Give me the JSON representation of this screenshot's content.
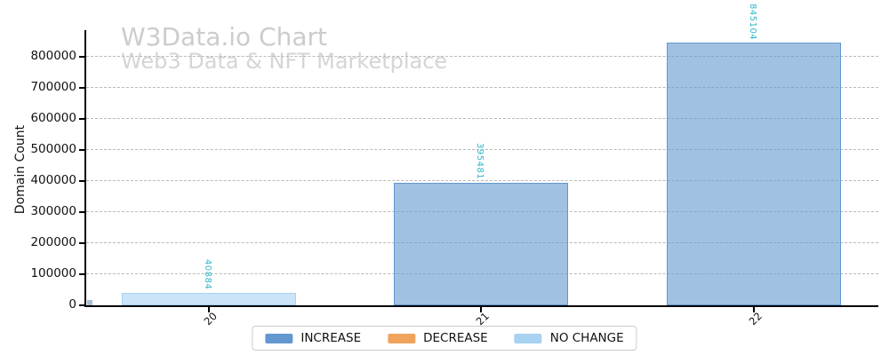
{
  "chart_data": {
    "type": "bar",
    "title": "W3Data.io Chart",
    "subtitle": "Web3 Data & NFT Marketplace",
    "ylabel": "Domain Count",
    "xlabel": "",
    "categories": [
      "20",
      "21",
      "22"
    ],
    "bars": [
      {
        "category": "20",
        "value": 40884,
        "label": "40884",
        "series": "NO CHANGE"
      },
      {
        "category": "21",
        "value": 395481,
        "label": "395481",
        "series": "INCREASE"
      },
      {
        "category": "22",
        "value": 845104,
        "label": "845104",
        "series": "INCREASE"
      }
    ],
    "series": [
      {
        "name": "INCREASE",
        "color": "#6397cf"
      },
      {
        "name": "DECREASE",
        "color": "#f0a35c"
      },
      {
        "name": "NO CHANGE",
        "color": "#a8d2f2"
      }
    ],
    "yticks": [
      0,
      100000,
      200000,
      300000,
      400000,
      500000,
      600000,
      700000,
      800000
    ],
    "ylim": [
      0,
      886000
    ],
    "grid": "dashed-horizontal",
    "legend_position": "bottom-center",
    "colors": {
      "value_label": "#2fb7cb",
      "watermark_title": "#cccccc",
      "watermark_subtitle": "#d5d5d5",
      "gridline": "#b9b9b9",
      "axis": "#000000",
      "origin_artifact": "#a9bfd4"
    }
  }
}
